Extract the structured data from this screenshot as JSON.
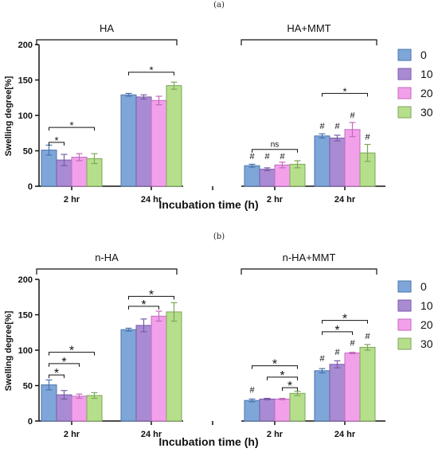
{
  "chart_data": [
    {
      "type": "bar",
      "panel": "(a)",
      "ylabel": "Swelling degree[%]",
      "xlabel": "Incubation time (h)",
      "ylim": [
        0,
        200
      ],
      "yticks": [
        0,
        50,
        100,
        150,
        200
      ],
      "legend": {
        "placement": "right",
        "entries": [
          "0",
          "10",
          "20",
          "30"
        ]
      },
      "groups": [
        {
          "name": "HA",
          "categories": [
            "2 hr",
            "24 hr"
          ]
        },
        {
          "name": "HA+MMT",
          "categories": [
            "2 hr",
            "24 hr"
          ]
        }
      ],
      "series": [
        {
          "name": "0",
          "values": [
            51,
            129,
            29,
            71
          ],
          "errors": [
            7,
            2,
            2,
            3
          ]
        },
        {
          "name": "10",
          "values": [
            37,
            126,
            24,
            68
          ],
          "errors": [
            8,
            3,
            2,
            4
          ]
        },
        {
          "name": "20",
          "values": [
            41,
            121,
            30,
            80
          ],
          "errors": [
            5,
            6,
            4,
            10
          ]
        },
        {
          "name": "30",
          "values": [
            39,
            142,
            31,
            47
          ],
          "errors": [
            7,
            5,
            5,
            12
          ]
        }
      ],
      "annotations": [
        {
          "text": "*",
          "cat": 0,
          "from": 0,
          "to": 1,
          "y": 62
        },
        {
          "text": "*",
          "cat": 0,
          "from": 0,
          "to": 3,
          "y": 83
        },
        {
          "text": "*",
          "cat": 1,
          "from": 0,
          "to": 3,
          "y": 161
        },
        {
          "text": "ns",
          "cat": 2,
          "from": 0,
          "to": 3,
          "y": 52
        },
        {
          "text": "*",
          "cat": 3,
          "from": 0,
          "to": 3,
          "y": 131
        }
      ],
      "markers": [
        {
          "text": "#",
          "cat": 2,
          "series": 0,
          "y": 38
        },
        {
          "text": "#",
          "cat": 2,
          "series": 1,
          "y": 38
        },
        {
          "text": "#",
          "cat": 2,
          "series": 2,
          "y": 38
        },
        {
          "text": "#",
          "cat": 3,
          "series": 0,
          "y": 81
        },
        {
          "text": "#",
          "cat": 3,
          "series": 1,
          "y": 81
        },
        {
          "text": "#",
          "cat": 3,
          "series": 2,
          "y": 96
        },
        {
          "text": "#",
          "cat": 3,
          "series": 3,
          "y": 66
        }
      ]
    },
    {
      "type": "bar",
      "panel": "(b)",
      "ylabel": "Swelling degree[%]",
      "xlabel": "Incubation time (h)",
      "ylim": [
        0,
        200
      ],
      "yticks": [
        0,
        50,
        100,
        150,
        200
      ],
      "legend": {
        "placement": "right",
        "entries": [
          "0",
          "10",
          "20",
          "30"
        ]
      },
      "groups": [
        {
          "name": "n-HA",
          "categories": [
            "2 hr",
            "24 hr"
          ]
        },
        {
          "name": "n-HA+MMT",
          "categories": [
            "2 hr",
            "24 hr"
          ]
        }
      ],
      "series": [
        {
          "name": "0",
          "values": [
            51,
            129,
            29,
            71
          ],
          "errors": [
            7,
            2,
            2,
            3
          ]
        },
        {
          "name": "10",
          "values": [
            37,
            135,
            31,
            80
          ],
          "errors": [
            6,
            9,
            1,
            5
          ]
        },
        {
          "name": "20",
          "values": [
            35,
            148,
            31,
            96
          ],
          "errors": [
            3,
            7,
            1,
            1
          ]
        },
        {
          "name": "30",
          "values": [
            36,
            154,
            39,
            104
          ],
          "errors": [
            4,
            13,
            3,
            4
          ]
        }
      ],
      "annotations": [
        {
          "text": "*",
          "cat": 0,
          "from": 0,
          "to": 1,
          "y": 65
        },
        {
          "text": "*",
          "cat": 0,
          "from": 0,
          "to": 2,
          "y": 81
        },
        {
          "text": "*",
          "cat": 0,
          "from": 0,
          "to": 3,
          "y": 97
        },
        {
          "text": "*",
          "cat": 1,
          "from": 0,
          "to": 2,
          "y": 162
        },
        {
          "text": "*",
          "cat": 1,
          "from": 0,
          "to": 3,
          "y": 176
        },
        {
          "text": "*",
          "cat": 2,
          "from": 2,
          "to": 3,
          "y": 47
        },
        {
          "text": "*",
          "cat": 2,
          "from": 1,
          "to": 3,
          "y": 62
        },
        {
          "text": "*",
          "cat": 2,
          "from": 0,
          "to": 3,
          "y": 78
        },
        {
          "text": "*",
          "cat": 3,
          "from": 0,
          "to": 2,
          "y": 126
        },
        {
          "text": "*",
          "cat": 3,
          "from": 0,
          "to": 3,
          "y": 142
        }
      ],
      "markers": [
        {
          "text": "#",
          "cat": 2,
          "series": 0,
          "y": 40
        },
        {
          "text": "#",
          "cat": 3,
          "series": 0,
          "y": 84
        },
        {
          "text": "#",
          "cat": 3,
          "series": 1,
          "y": 93
        },
        {
          "text": "#",
          "cat": 3,
          "series": 2,
          "y": 106
        },
        {
          "text": "#",
          "cat": 3,
          "series": 3,
          "y": 116
        }
      ]
    }
  ],
  "colors": {
    "series_fill": [
      "#7ea6d8",
      "#a98bd3",
      "#f2a0ea",
      "#b6df8c"
    ],
    "series_stroke": [
      "#4a74ad",
      "#7a5aa8",
      "#c46ac0",
      "#7ea65a"
    ],
    "axis": "#111111"
  }
}
